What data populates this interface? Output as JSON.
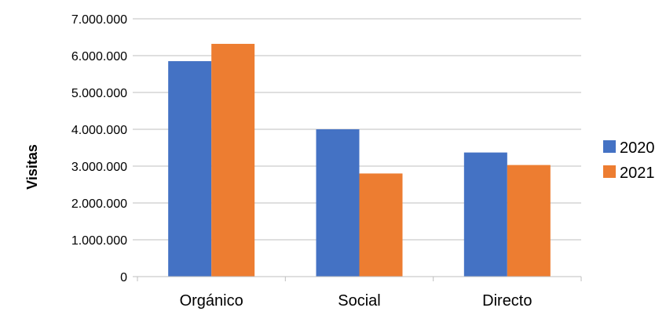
{
  "chart_data": {
    "type": "bar",
    "title": "",
    "xlabel": "",
    "ylabel": "Visitas",
    "categories": [
      "Orgánico",
      "Social",
      "Directo"
    ],
    "series": [
      {
        "name": "2020",
        "color": "#4472C4",
        "values": [
          5850000,
          4000000,
          3370000
        ]
      },
      {
        "name": "2021",
        "color": "#ED7D31",
        "values": [
          6320000,
          2800000,
          3030000
        ]
      }
    ],
    "ylim": [
      0,
      7000000
    ],
    "yticks": [
      0,
      1000000,
      2000000,
      3000000,
      4000000,
      5000000,
      6000000,
      7000000
    ],
    "ytick_labels": [
      "0",
      "1.000.000",
      "2.000.000",
      "3.000.000",
      "4.000.000",
      "5.000.000",
      "6.000.000",
      "7.000.000"
    ],
    "grid": true,
    "legend_position": "right"
  }
}
